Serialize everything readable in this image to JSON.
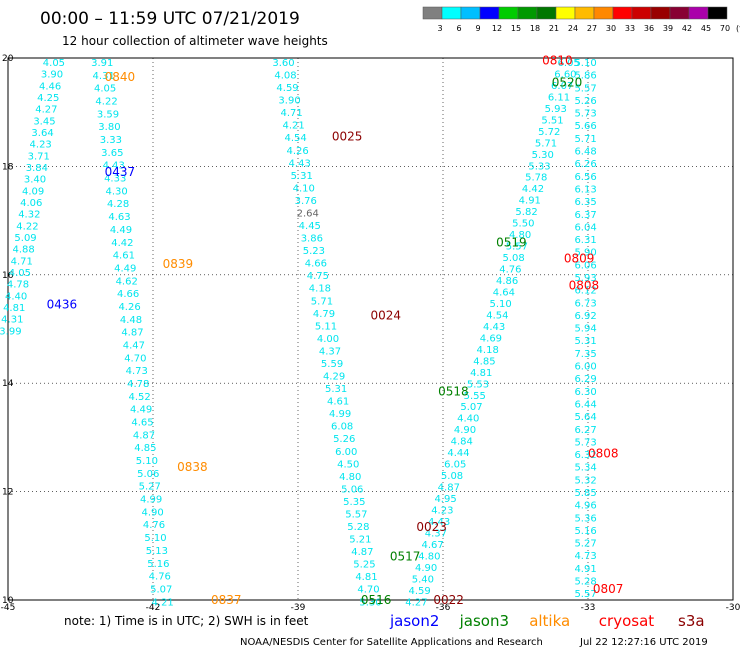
{
  "header": {
    "title": "00:00 – 11:59 UTC 07/21/2019",
    "subtitle": "12 hour collection of altimeter wave heights"
  },
  "color_scale": {
    "labels": [
      "3",
      "6",
      "9",
      "12",
      "15",
      "18",
      "21",
      "24",
      "27",
      "30",
      "33",
      "36",
      "39",
      "42",
      "45",
      "70",
      "(ft)"
    ],
    "colors": [
      "#808080",
      "#00ffff",
      "#00bfff",
      "#0000ff",
      "#00cc00",
      "#009900",
      "#007700",
      "#ffff00",
      "#ffbb00",
      "#ff8800",
      "#ff0000",
      "#cc0000",
      "#990000",
      "#880033",
      "#aa00aa",
      "#000000"
    ]
  },
  "axes": {
    "x_ticks": [
      "-45",
      "-42",
      "-39",
      "-36",
      "-33",
      "-30"
    ],
    "y_ticks": [
      "20",
      "18",
      "16",
      "14",
      "12",
      "10"
    ],
    "x_range": [
      -45,
      -30
    ],
    "y_range": [
      10,
      20
    ]
  },
  "passes": [
    {
      "color": "#00e5ee",
      "lon0": -44.05,
      "lat0": 20.0,
      "lon1": -44.95,
      "lat1": 15.05,
      "values": [
        "4.05",
        "3.90",
        "4.46",
        "4.25",
        "4.27",
        "3.45",
        "3.64",
        "4.23",
        "3.71",
        "3.84",
        "3.40",
        "4.09",
        "4.06",
        "4.32",
        "4.22",
        "5.09",
        "4.88",
        "4.71",
        "4.05",
        "4.78",
        "4.40",
        "4.81",
        "4.31",
        "3.99"
      ]
    },
    {
      "color": "#00e5ee",
      "lon0": -43.05,
      "lat0": 20.0,
      "lon1": -41.8,
      "lat1": 10.05,
      "values": [
        "3.91",
        "4.31",
        "4.05",
        "4.22",
        "3.59",
        "3.80",
        "3.33",
        "3.65",
        "4.43",
        "4.33",
        "4.30",
        "4.28",
        "4.63",
        "4.49",
        "4.42",
        "4.61",
        "4.49",
        "4.62",
        "4.66",
        "4.26",
        "4.48",
        "4.87",
        "4.47",
        "4.70",
        "4.73",
        "4.78",
        "4.52",
        "4.49",
        "4.65",
        "4.87",
        "4.85",
        "5.10",
        "5.06",
        "5.27",
        "4.99",
        "4.90",
        "4.76",
        "5.10",
        "5.13",
        "5.16",
        "4.76",
        "5.07",
        "4.21"
      ]
    },
    {
      "color": "#00e5ee",
      "lon0": -39.3,
      "lat0": 20.0,
      "lon1": -37.5,
      "lat1": 10.05,
      "values": [
        "3.60",
        "4.08",
        "4.59",
        "3.90",
        "4.71",
        "4.21",
        "4.54",
        "4.26",
        "4.43",
        "5.31",
        "4.10",
        "3.76",
        "2.64",
        "4.45",
        "3.86",
        "5.23",
        "4.66",
        "4.75",
        "4.18",
        "5.71",
        "4.79",
        "5.11",
        "4.00",
        "4.37",
        "5.59",
        "4.29",
        "5.31",
        "4.61",
        "4.99",
        "6.08",
        "5.26",
        "6.00",
        "4.50",
        "4.80",
        "5.06",
        "5.35",
        "5.57",
        "5.28",
        "5.21",
        "4.87",
        "5.25",
        "4.81",
        "4.70",
        "5.30"
      ]
    },
    {
      "color": "#00e5ee",
      "lon0": -33.4,
      "lat0": 20.0,
      "lon1": -36.55,
      "lat1": 10.05,
      "values": [
        "6.05",
        "6.60",
        "6.07",
        "6.11",
        "5.93",
        "5.51",
        "5.72",
        "5.71",
        "5.30",
        "5.33",
        "5.78",
        "4.42",
        "4.91",
        "5.82",
        "5.50",
        "4.80",
        "5.57",
        "5.08",
        "4.76",
        "4.86",
        "4.64",
        "5.10",
        "4.54",
        "4.43",
        "4.69",
        "4.18",
        "4.85",
        "4.81",
        "5.53",
        "5.55",
        "5.07",
        "4.40",
        "4.90",
        "4.84",
        "4.44",
        "6.05",
        "5.08",
        "4.87",
        "4.95",
        "4.23",
        "4.43",
        "4.37",
        "4.67",
        "4.80",
        "4.90",
        "5.40",
        "4.59",
        "4.27"
      ]
    },
    {
      "color": "#00e5ee",
      "lon0": -33.05,
      "lat0": 20.0,
      "lon1": -33.05,
      "lat1": 10.2,
      "values": [
        "5.10",
        "5.86",
        "5.57",
        "5.26",
        "5.73",
        "5.66",
        "5.71",
        "6.48",
        "6.26",
        "6.56",
        "6.13",
        "6.35",
        "6.37",
        "6.04",
        "6.31",
        "5.90",
        "6.06",
        "5.93",
        "6.12",
        "6.73",
        "6.92",
        "5.94",
        "5.31",
        "7.35",
        "6.00",
        "6.29",
        "6.30",
        "6.44",
        "5.64",
        "6.27",
        "5.73",
        "6.32",
        "5.34",
        "5.32",
        "5.85",
        "4.96",
        "5.36",
        "5.16",
        "5.27",
        "4.73",
        "4.91",
        "5.28",
        "5.57"
      ]
    }
  ],
  "time_labels": [
    {
      "text": "0840",
      "color": "#ff8c00",
      "lon": -43.0,
      "lat": 19.65
    },
    {
      "text": "0437",
      "color": "#0000ff",
      "lon": -43.0,
      "lat": 17.9
    },
    {
      "text": "0839",
      "color": "#ff8c00",
      "lon": -41.8,
      "lat": 16.2
    },
    {
      "text": "0436",
      "color": "#0000ff",
      "lon": -44.2,
      "lat": 15.45
    },
    {
      "text": "0838",
      "color": "#ff8c00",
      "lon": -41.5,
      "lat": 12.45
    },
    {
      "text": "0837",
      "color": "#ff8c00",
      "lon": -40.8,
      "lat": 10.0
    },
    {
      "text": "0025",
      "color": "#8b0000",
      "lon": -38.3,
      "lat": 18.55
    },
    {
      "text": "0024",
      "color": "#8b0000",
      "lon": -37.5,
      "lat": 15.25
    },
    {
      "text": "0023",
      "color": "#8b0000",
      "lon": -36.55,
      "lat": 11.35
    },
    {
      "text": "0022",
      "color": "#8b0000",
      "lon": -36.2,
      "lat": 10.0
    },
    {
      "text": "0810",
      "color": "#ff0000",
      "lon": -33.95,
      "lat": 19.95
    },
    {
      "text": "0520",
      "color": "#008000",
      "lon": -33.75,
      "lat": 19.55
    },
    {
      "text": "0519",
      "color": "#008000",
      "lon": -34.9,
      "lat": 16.6
    },
    {
      "text": "0809",
      "color": "#ff0000",
      "lon": -33.5,
      "lat": 16.3
    },
    {
      "text": "0808",
      "color": "#ff0000",
      "lon": -33.4,
      "lat": 15.8
    },
    {
      "text": "0518",
      "color": "#008000",
      "lon": -36.1,
      "lat": 13.85
    },
    {
      "text": "0808",
      "color": "#ff0000",
      "lon": -33.0,
      "lat": 12.7
    },
    {
      "text": "0517",
      "color": "#008000",
      "lon": -37.1,
      "lat": 10.8
    },
    {
      "text": "0516",
      "color": "#008000",
      "lon": -37.7,
      "lat": 10.0
    },
    {
      "text": "0807",
      "color": "#ff0000",
      "lon": -32.9,
      "lat": 10.2
    }
  ],
  "footer": {
    "note": "note: 1) Time is in UTC; 2) SWH is in feet",
    "legend": [
      {
        "name": "jason2",
        "color": "#0000ff"
      },
      {
        "name": "jason3",
        "color": "#008000"
      },
      {
        "name": "altika",
        "color": "#ff8c00"
      },
      {
        "name": "cryosat",
        "color": "#ff0000"
      },
      {
        "name": "s3a",
        "color": "#8b0000"
      }
    ],
    "credit_left": "NOAA/NESDIS Center for Satellite Applications and Research",
    "credit_right": "Jul 22 12:27:16 UTC 2019"
  }
}
